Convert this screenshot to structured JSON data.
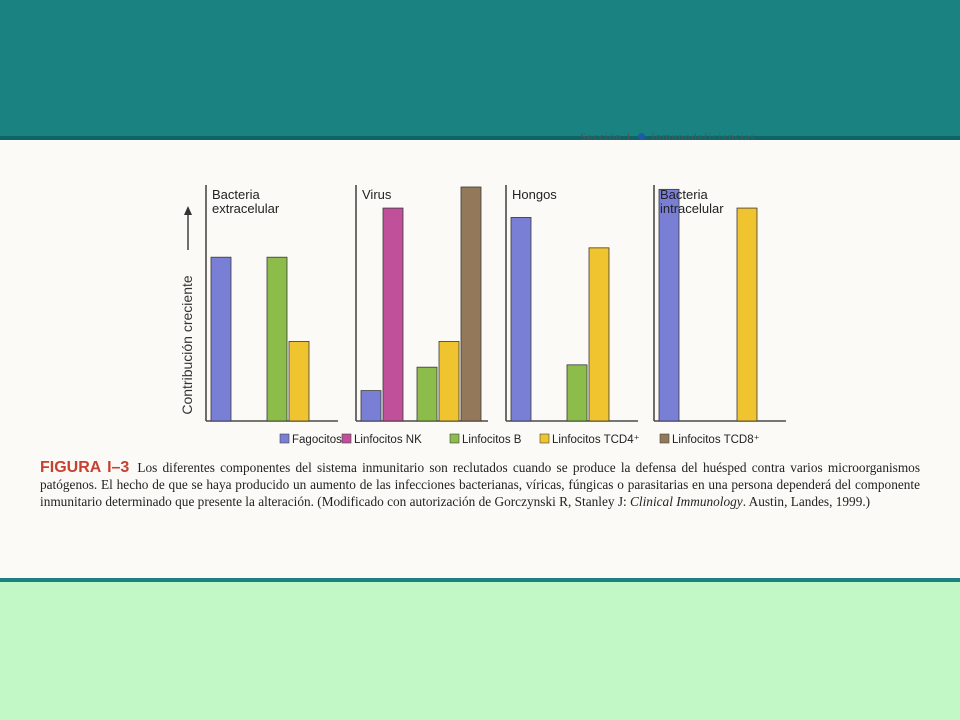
{
  "header": {
    "section": "Sección 1",
    "title": "Inmunodeficiencias"
  },
  "chart_data": {
    "type": "bar",
    "ylabel": "Contribución creciente",
    "panels": [
      {
        "title": [
          "Bacteria",
          "extracelular"
        ],
        "values": [
          0.7,
          0,
          0.7,
          0.34,
          0
        ]
      },
      {
        "title": [
          "Virus"
        ],
        "values": [
          0.13,
          0.91,
          0.23,
          0.34,
          1.0
        ]
      },
      {
        "title": [
          "Hongos"
        ],
        "values": [
          0.87,
          0,
          0.24,
          0.74,
          0
        ]
      },
      {
        "title": [
          "Bacteria",
          "intracelular"
        ],
        "values": [
          0.99,
          0,
          0,
          0.91,
          0
        ]
      }
    ],
    "legend": [
      {
        "name": "Fagocitos",
        "color": "#7a7fd6"
      },
      {
        "name": "Linfocitos NK",
        "color": "#c0509a"
      },
      {
        "name": "Linfocitos B",
        "color": "#8cbc4a"
      },
      {
        "name": "Linfocitos TCD4⁺",
        "color": "#f0c42e"
      },
      {
        "name": "Linfocitos TCD8⁺",
        "color": "#94785a"
      }
    ],
    "ylim": [
      0,
      1
    ],
    "legend_position": "bottom"
  },
  "caption": {
    "label": "FIGURA I–3",
    "text_1": "Los diferentes componentes del sistema inmunitario son reclutados cuando se produce la defensa del huésped contra varios microorganismos patógenos. El hecho de que se haya producido un aumento de las infecciones bacterianas, víricas, fúngicas o parasitarias en una persona dependerá del componente inmunitario determinado que presente la alteración. (Modificado con autorización de Gorczynski R, Stanley J: ",
    "book": "Clinical Immunology",
    "text_2": ". Austin, Landes, 1999.)"
  }
}
